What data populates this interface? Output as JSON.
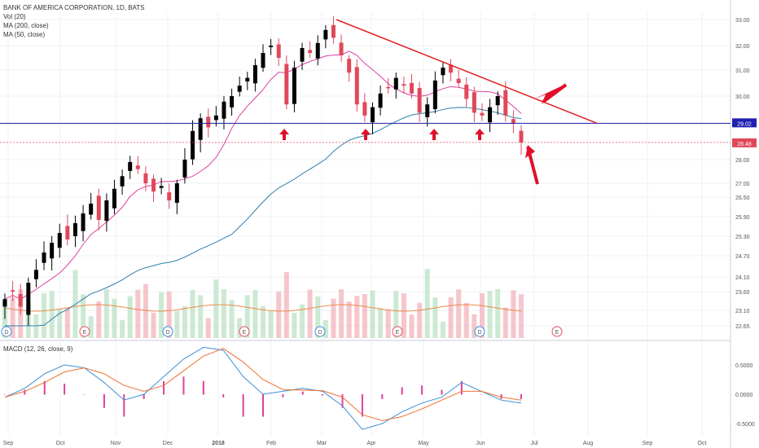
{
  "header": {
    "title": "BANK OF AMERICA CORPORATION, 1D, BATS",
    "indicators": [
      "Vol (20)",
      "MA (200, close)",
      "MA (50, close)"
    ]
  },
  "macd_legend": "MACD (12, 26, close, 9)",
  "price_labels": {
    "resistance": "29.02",
    "last": "28.48"
  },
  "colors": {
    "up": "#000000",
    "down": "#e0485a",
    "ma50": "#e040a0",
    "ma200": "#2f7fb0",
    "support_line": "#2020b0",
    "trendline": "#e02020",
    "arrows": "#e0102a",
    "macd": "#3a8fd8",
    "signal": "#f07030",
    "hist": "#e040a0"
  },
  "chart_data": [
    {
      "type": "candlestick",
      "y_ticks": [
        "33.00",
        "32.00",
        "31.00",
        "30.00",
        "29.00",
        "28.00",
        "27.00",
        "26.50",
        "25.90",
        "25.30",
        "24.70",
        "24.10",
        "23.60",
        "23.10",
        "22.65"
      ],
      "x_ticks": [
        "Sep",
        "Oct",
        "Nov",
        "Dec",
        "2018",
        "Feb",
        "Mar",
        "Apr",
        "May",
        "Jun",
        "Jul",
        "Aug",
        "Sep",
        "Oct"
      ],
      "closes": [
        23.4,
        23.6,
        23.2,
        23.9,
        24.3,
        24.8,
        25.1,
        25.4,
        25.2,
        25.7,
        26.0,
        26.3,
        25.8,
        26.4,
        26.8,
        27.3,
        27.9,
        27.6,
        27.0,
        26.7,
        26.9,
        26.4,
        27.0,
        28.0,
        28.8,
        29.2,
        28.9,
        29.3,
        29.8,
        30.0,
        30.4,
        30.7,
        31.2,
        31.7,
        32.0,
        31.5,
        29.7,
        31.1,
        31.9,
        31.7,
        32.1,
        32.6,
        32.3,
        31.6,
        30.9,
        29.7,
        29.3,
        29.6,
        30.1,
        30.3,
        30.7,
        30.4,
        30.1,
        29.4,
        29.7,
        30.6,
        31.1,
        30.9,
        30.5,
        29.9,
        29.4,
        29.3,
        29.6,
        30.0,
        29.3,
        29.0,
        28.48
      ],
      "support": 29.02,
      "trendline": [
        [
          40,
          33.0
        ],
        [
          72,
          29.0
        ]
      ],
      "markers": [
        "D",
        "E",
        "D",
        "E",
        "D",
        "E",
        "D",
        "E"
      ]
    },
    {
      "type": "line",
      "y_ticks": [
        "0.5000",
        "0.0000",
        "-0.5000"
      ],
      "series": [
        {
          "name": "MACD",
          "values": [
            -0.05,
            0.1,
            0.35,
            0.5,
            0.45,
            0.2,
            -0.1,
            0.0,
            0.3,
            0.6,
            0.8,
            0.75,
            0.3,
            0.0,
            0.05,
            0.1,
            0.05,
            -0.2,
            -0.6,
            -0.5,
            -0.3,
            -0.15,
            -0.05,
            0.2,
            0.05,
            -0.1,
            -0.15
          ]
        },
        {
          "name": "Signal",
          "values": [
            -0.05,
            0.05,
            0.2,
            0.38,
            0.45,
            0.35,
            0.15,
            0.05,
            0.15,
            0.4,
            0.65,
            0.78,
            0.55,
            0.25,
            0.08,
            0.07,
            0.06,
            -0.05,
            -0.35,
            -0.45,
            -0.38,
            -0.25,
            -0.1,
            0.05,
            0.05,
            -0.05,
            -0.1
          ]
        }
      ]
    }
  ]
}
